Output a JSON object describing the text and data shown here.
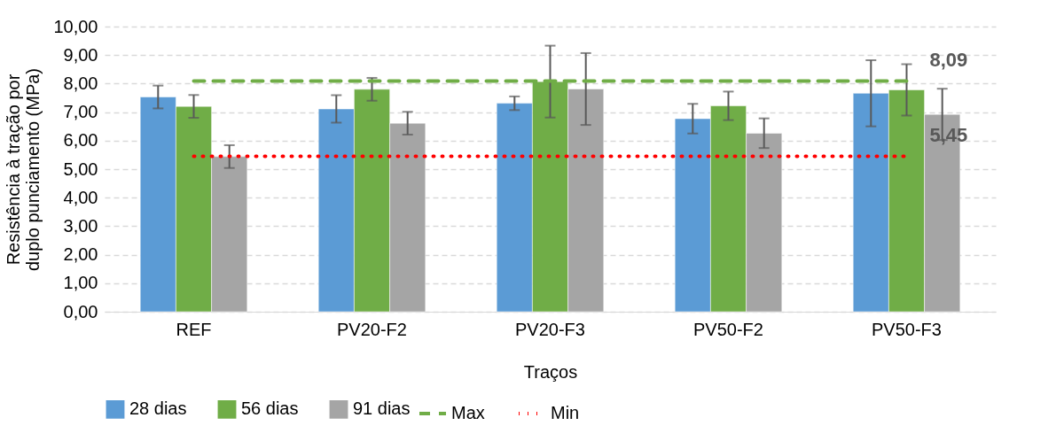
{
  "chart_data": {
    "type": "bar",
    "xlabel": "Traços",
    "ylabel": "Resistência à tração por duplo punciamento (MPa)",
    "categories": [
      "REF",
      "PV20-F2",
      "PV20-F3",
      "PV50-F2",
      "PV50-F3"
    ],
    "series": [
      {
        "name": "28 dias",
        "color": "#5b9bd5",
        "values": [
          7.53,
          7.11,
          7.31,
          6.77,
          7.66
        ],
        "errors": [
          0.4,
          0.48,
          0.24,
          0.52,
          1.16
        ]
      },
      {
        "name": "56 dias",
        "color": "#70ad47",
        "values": [
          7.2,
          7.8,
          8.07,
          7.22,
          7.78
        ],
        "errors": [
          0.4,
          0.4,
          1.26,
          0.5,
          0.9
        ]
      },
      {
        "name": "91 dias",
        "color": "#a5a5a5",
        "values": [
          5.44,
          6.61,
          7.81,
          6.26,
          6.92
        ],
        "errors": [
          0.4,
          0.4,
          1.26,
          0.52,
          0.9
        ]
      },
      {
        "name": "Max",
        "type": "line",
        "color": "#70ad47",
        "line_style": "dashed",
        "values": [
          8.09,
          8.09,
          8.09,
          8.09,
          8.09
        ],
        "value_labels": [
          null,
          null,
          null,
          null,
          "8,09"
        ]
      },
      {
        "name": "Min",
        "type": "line",
        "color": "#ff0000",
        "line_style": "dotted",
        "values": [
          5.45,
          5.45,
          5.45,
          5.45,
          5.45
        ],
        "value_labels": [
          null,
          null,
          null,
          null,
          "5,45"
        ]
      }
    ],
    "ylim": [
      0,
      10
    ],
    "yticks": [
      {
        "value": 0,
        "label": "0,00"
      },
      {
        "value": 1,
        "label": "1,00"
      },
      {
        "value": 2,
        "label": "2,00"
      },
      {
        "value": 3,
        "label": "3,00"
      },
      {
        "value": 4,
        "label": "4,00"
      },
      {
        "value": 5,
        "label": "5,00"
      },
      {
        "value": 6,
        "label": "6,00"
      },
      {
        "value": 7,
        "label": "7,00"
      },
      {
        "value": 8,
        "label": "8,00"
      },
      {
        "value": 9,
        "label": "9,00"
      },
      {
        "value": 10,
        "label": "10,00"
      }
    ],
    "grid": "y",
    "legend": "bottom"
  }
}
